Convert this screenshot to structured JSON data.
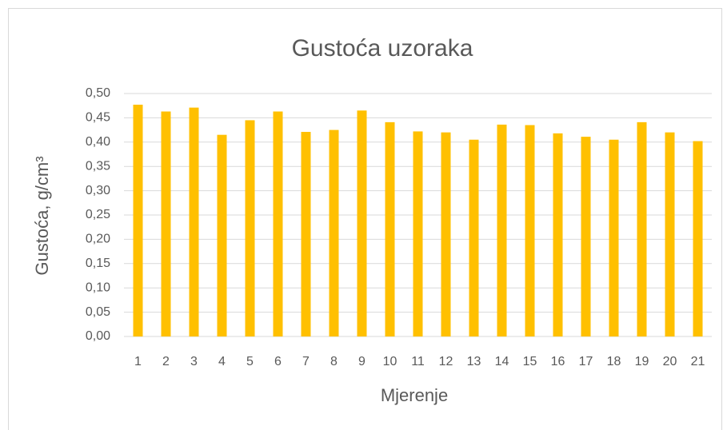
{
  "chart_data": {
    "type": "bar",
    "title": "Gustoća uzoraka",
    "x_label": "Mjerenje",
    "y_label": "Gustoća, g/cm³",
    "categories": [
      "1",
      "2",
      "3",
      "4",
      "5",
      "6",
      "7",
      "8",
      "9",
      "10",
      "11",
      "12",
      "13",
      "14",
      "15",
      "16",
      "17",
      "18",
      "19",
      "20",
      "21"
    ],
    "values": [
      0.477,
      0.463,
      0.471,
      0.415,
      0.445,
      0.463,
      0.421,
      0.425,
      0.465,
      0.441,
      0.422,
      0.42,
      0.405,
      0.436,
      0.435,
      0.418,
      0.411,
      0.405,
      0.441,
      0.42,
      0.402
    ],
    "color": "#ffc000",
    "ylim": [
      0,
      0.5
    ],
    "yticks": [
      {
        "value": 0,
        "label": "0,00"
      },
      {
        "value": 0.05,
        "label": "0,05"
      },
      {
        "value": 0.1,
        "label": "0,10"
      },
      {
        "value": 0.15,
        "label": "0,15"
      },
      {
        "value": 0.2,
        "label": "0,20"
      },
      {
        "value": 0.25,
        "label": "0,25"
      },
      {
        "value": 0.3,
        "label": "0,30"
      },
      {
        "value": 0.35,
        "label": "0,35"
      },
      {
        "value": 0.4,
        "label": "0,40"
      },
      {
        "value": 0.45,
        "label": "0,45"
      },
      {
        "value": 0.5,
        "label": "0,50"
      }
    ],
    "grid": true
  }
}
